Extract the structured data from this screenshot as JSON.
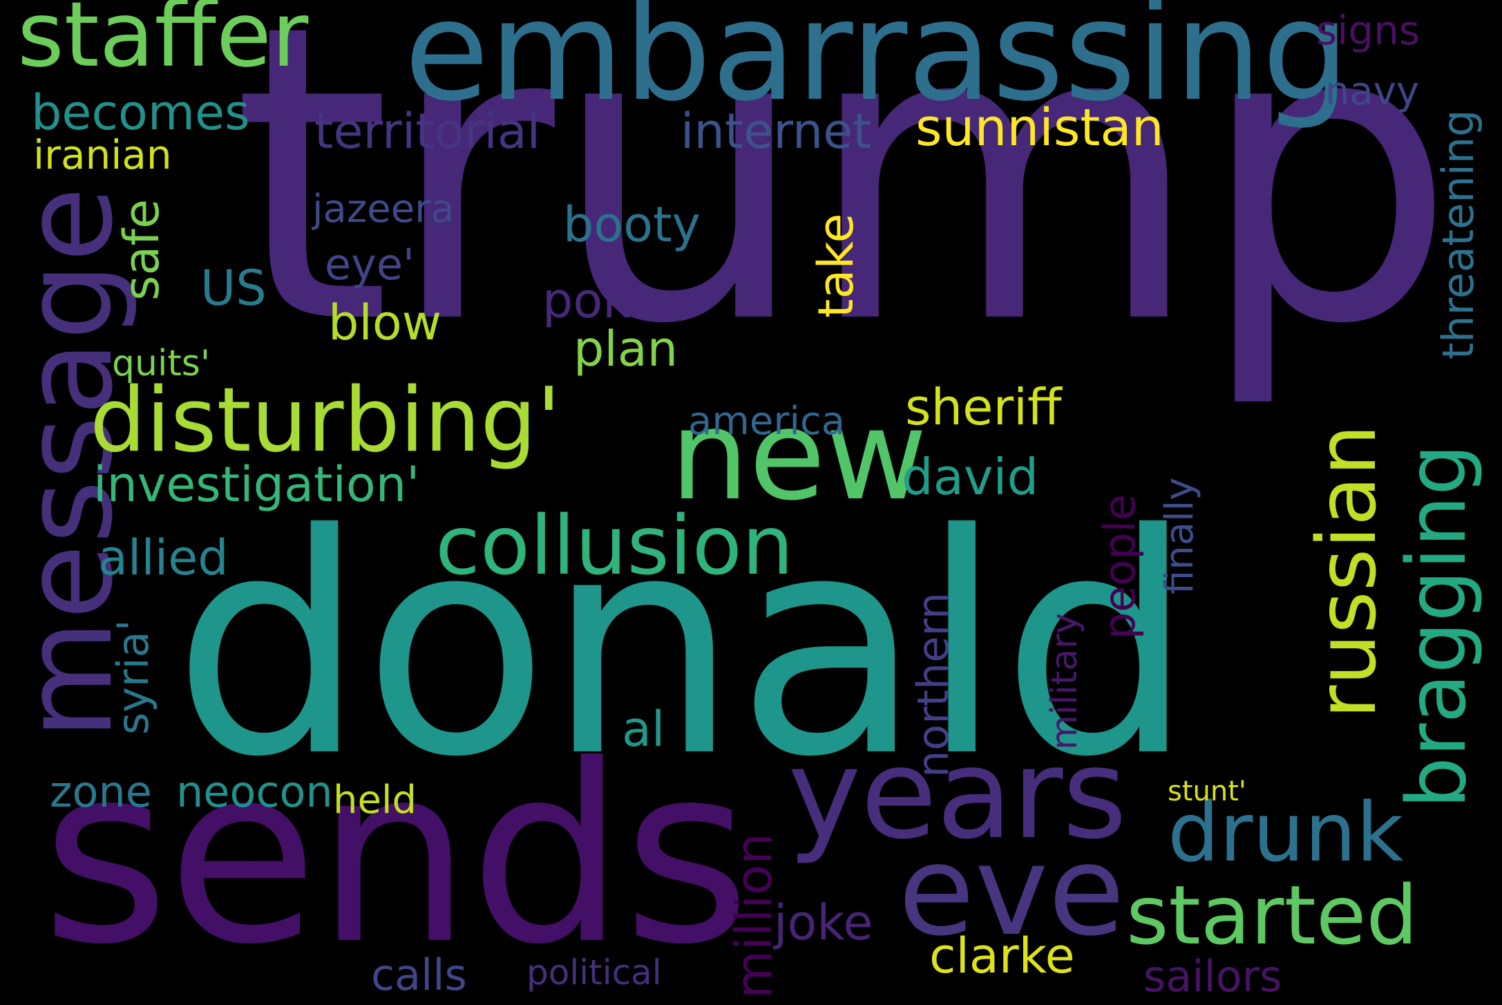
{
  "background_color": "#000000",
  "words": [
    {
      "id": "trump",
      "text": "trump",
      "color": "#472878",
      "orientation": "horizontal"
    },
    {
      "id": "donald",
      "text": "donald",
      "color": "#1f968b",
      "orientation": "horizontal"
    },
    {
      "id": "sends",
      "text": "sends",
      "color": "#440f66",
      "orientation": "horizontal"
    },
    {
      "id": "embarrassing",
      "text": "embarrassing",
      "color": "#2e6f8e",
      "orientation": "horizontal"
    },
    {
      "id": "message",
      "text": "message",
      "color": "#46307c",
      "orientation": "vertical"
    },
    {
      "id": "new",
      "text": "new",
      "color": "#52c569",
      "orientation": "horizontal"
    },
    {
      "id": "years",
      "text": "years",
      "color": "#472e7c",
      "orientation": "horizontal"
    },
    {
      "id": "eve",
      "text": "eve",
      "color": "#48357f",
      "orientation": "horizontal"
    },
    {
      "id": "staffer",
      "text": "staffer",
      "color": "#6ccd5a",
      "orientation": "horizontal"
    },
    {
      "id": "disturbing",
      "text": "disturbing'",
      "color": "#a8db34",
      "orientation": "horizontal"
    },
    {
      "id": "collusion",
      "text": "collusion",
      "color": "#2fb47c",
      "orientation": "horizontal"
    },
    {
      "id": "russian",
      "text": "russian",
      "color": "#c0df25",
      "orientation": "vertical"
    },
    {
      "id": "bragging",
      "text": "bragging",
      "color": "#24aa83",
      "orientation": "vertical"
    },
    {
      "id": "drunk",
      "text": "drunk",
      "color": "#2c728e",
      "orientation": "horizontal"
    },
    {
      "id": "started",
      "text": "started",
      "color": "#5ec962",
      "orientation": "horizontal"
    },
    {
      "id": "territorial",
      "text": "territorial",
      "color": "#453581",
      "orientation": "horizontal"
    },
    {
      "id": "internet",
      "text": "internet",
      "color": "#3b528b",
      "orientation": "horizontal"
    },
    {
      "id": "sunnistan",
      "text": "sunnistan",
      "color": "#fde725",
      "orientation": "horizontal"
    },
    {
      "id": "becomes",
      "text": "becomes",
      "color": "#21918c",
      "orientation": "horizontal"
    },
    {
      "id": "iranian",
      "text": "iranian",
      "color": "#d0e11c",
      "orientation": "horizontal"
    },
    {
      "id": "safe",
      "text": "safe",
      "color": "#7ad151",
      "orientation": "vertical"
    },
    {
      "id": "jazeera",
      "text": "jazeera",
      "color": "#3e4a89",
      "orientation": "horizontal"
    },
    {
      "id": "booty",
      "text": "booty",
      "color": "#2c728e",
      "orientation": "horizontal"
    },
    {
      "id": "take",
      "text": "take",
      "color": "#fde725",
      "orientation": "vertical"
    },
    {
      "id": "eye",
      "text": "eye'",
      "color": "#414487",
      "orientation": "horizontal"
    },
    {
      "id": "us",
      "text": "US",
      "color": "#287c8e",
      "orientation": "horizontal"
    },
    {
      "id": "poke",
      "text": "poke",
      "color": "#482979",
      "orientation": "horizontal"
    },
    {
      "id": "blow",
      "text": "blow",
      "color": "#b5de2b",
      "orientation": "horizontal"
    },
    {
      "id": "plan",
      "text": "plan",
      "color": "#84d44b",
      "orientation": "horizontal"
    },
    {
      "id": "quits",
      "text": "quits'",
      "color": "#7ad151",
      "orientation": "horizontal"
    },
    {
      "id": "sheriff",
      "text": "sheriff",
      "color": "#d2e21b",
      "orientation": "horizontal"
    },
    {
      "id": "america",
      "text": "america",
      "color": "#31678e",
      "orientation": "horizontal"
    },
    {
      "id": "investigation",
      "text": "investigation'",
      "color": "#35b779",
      "orientation": "horizontal"
    },
    {
      "id": "david",
      "text": "david",
      "color": "#1f9e89",
      "orientation": "horizontal"
    },
    {
      "id": "allied",
      "text": "allied",
      "color": "#25848e",
      "orientation": "horizontal"
    },
    {
      "id": "syria",
      "text": "syria'",
      "color": "#29798e",
      "orientation": "vertical"
    },
    {
      "id": "people",
      "text": "people",
      "color": "#440154",
      "orientation": "vertical"
    },
    {
      "id": "finally",
      "text": "finally",
      "color": "#3d4d8a",
      "orientation": "vertical"
    },
    {
      "id": "northern",
      "text": "northern",
      "color": "#433e85",
      "orientation": "vertical"
    },
    {
      "id": "military",
      "text": "military",
      "color": "#481769",
      "orientation": "vertical"
    },
    {
      "id": "al",
      "text": "al",
      "color": "#1f9a8a",
      "orientation": "horizontal"
    },
    {
      "id": "zone",
      "text": "zone",
      "color": "#2a788e",
      "orientation": "horizontal"
    },
    {
      "id": "neocon",
      "text": "neocon",
      "color": "#21918c",
      "orientation": "horizontal"
    },
    {
      "id": "held",
      "text": "held",
      "color": "#c2df23",
      "orientation": "horizontal"
    },
    {
      "id": "stunt",
      "text": "stunt'",
      "color": "#d8e219",
      "orientation": "horizontal"
    },
    {
      "id": "million",
      "text": "million",
      "color": "#440154",
      "orientation": "vertical"
    },
    {
      "id": "joke",
      "text": "joke",
      "color": "#482475",
      "orientation": "horizontal"
    },
    {
      "id": "clarke",
      "text": "clarke",
      "color": "#dde318",
      "orientation": "horizontal"
    },
    {
      "id": "calls",
      "text": "calls",
      "color": "#404688",
      "orientation": "horizontal"
    },
    {
      "id": "political",
      "text": "political",
      "color": "#46307e",
      "orientation": "horizontal"
    },
    {
      "id": "sailors",
      "text": "sailors",
      "color": "#471365",
      "orientation": "horizontal"
    },
    {
      "id": "signs",
      "text": "signs",
      "color": "#471063",
      "orientation": "horizontal"
    },
    {
      "id": "navy",
      "text": "navy",
      "color": "#3f4788",
      "orientation": "horizontal"
    },
    {
      "id": "threatening",
      "text": "threatening",
      "color": "#2d718e",
      "orientation": "vertical"
    }
  ]
}
